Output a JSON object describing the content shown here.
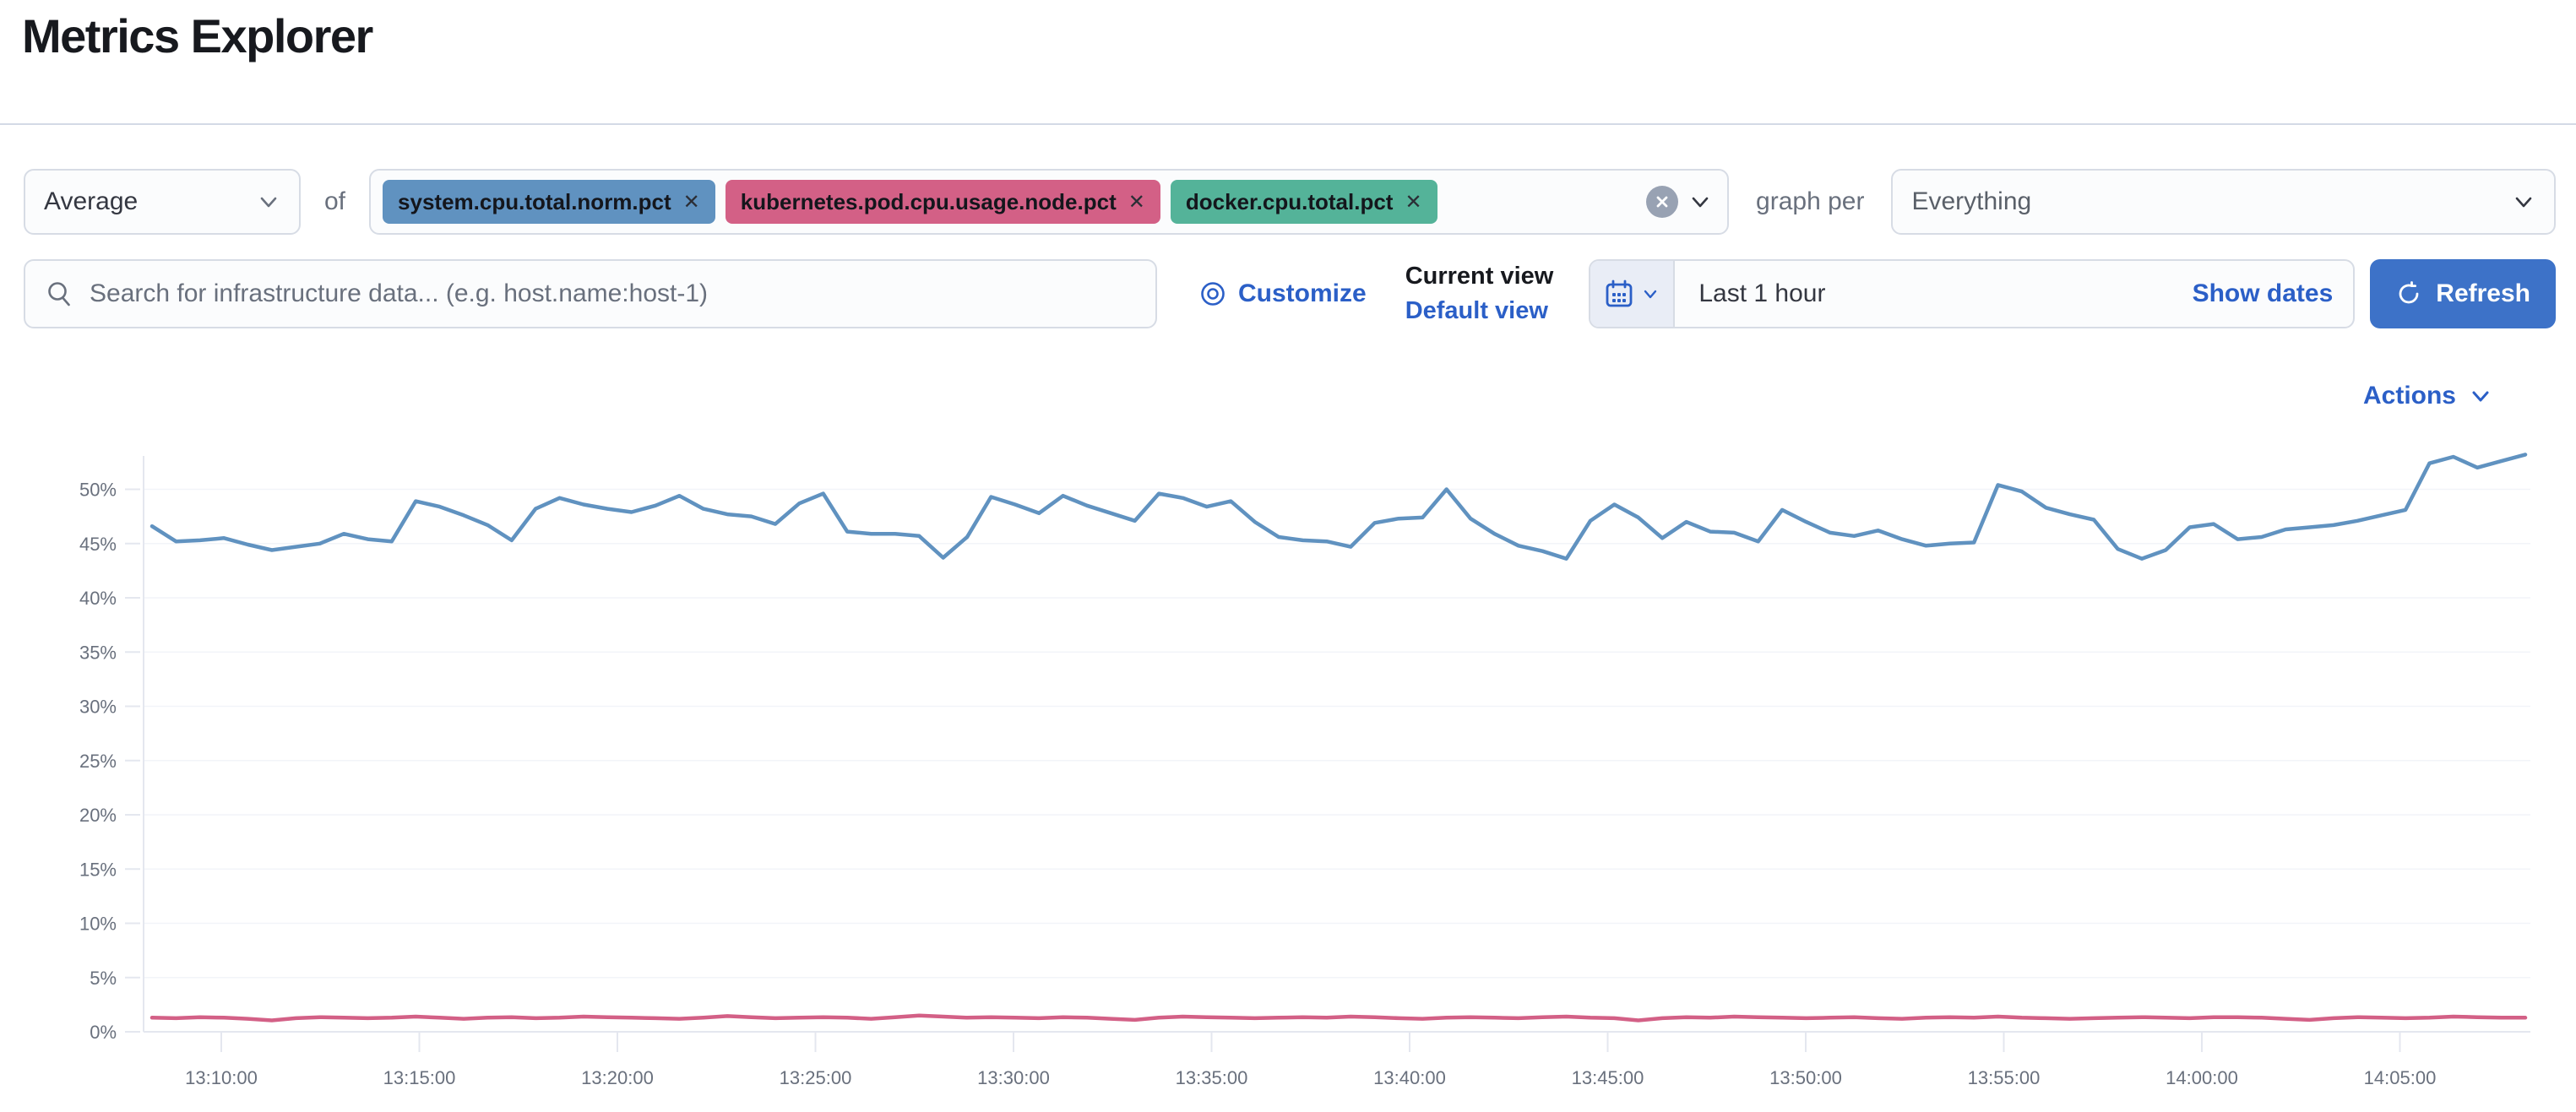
{
  "page": {
    "title": "Metrics Explorer"
  },
  "aggregation": {
    "selected": "Average",
    "of_label": "of"
  },
  "metrics": {
    "remove_glyph": "✕",
    "tags": [
      {
        "label": "system.cpu.total.norm.pct",
        "color": "#6092C0"
      },
      {
        "label": "kubernetes.pod.cpu.usage.node.pct",
        "color": "#D36086"
      },
      {
        "label": "docker.cpu.total.pct",
        "color": "#54B399"
      }
    ]
  },
  "graph_per": {
    "label": "graph per",
    "selected": "Everything"
  },
  "search": {
    "placeholder": "Search for infrastructure data... (e.g. host.name:host-1)"
  },
  "toolbar": {
    "customize_label": "Customize",
    "current_view_label": "Current view",
    "default_view_label": "Default view"
  },
  "datepicker": {
    "value": "Last 1 hour",
    "show_dates_label": "Show dates"
  },
  "refresh": {
    "label": "Refresh"
  },
  "actions": {
    "label": "Actions"
  },
  "colors": {
    "link_blue": "#2B5FC7",
    "button_blue": "#3D72C8",
    "axis_text": "#69707D",
    "grid_line": "#F2F4F9",
    "axis_line": "#E4E7EF",
    "series_blue": "#6092C0",
    "series_pink": "#D36086"
  },
  "chart_data": {
    "type": "line",
    "title": "",
    "xlabel": "",
    "ylabel": "",
    "ylim": [
      0,
      54
    ],
    "y_tick_step": 5,
    "y_tick_labels": [
      "0%",
      "5%",
      "10%",
      "15%",
      "20%",
      "25%",
      "30%",
      "35%",
      "40%",
      "45%",
      "50%"
    ],
    "x_tick_labels": [
      "13:10:00",
      "13:15:00",
      "13:20:00",
      "13:25:00",
      "13:30:00",
      "13:35:00",
      "13:40:00",
      "13:45:00",
      "13:50:00",
      "13:55:00",
      "14:00:00",
      "14:05:00"
    ],
    "grid": true,
    "legend": "none",
    "series": [
      {
        "name": "system.cpu.total.norm.pct",
        "color": "#6092C0",
        "values": [
          46.6,
          45.2,
          45.3,
          45.5,
          44.9,
          44.4,
          44.7,
          45.0,
          45.9,
          45.4,
          45.2,
          48.9,
          48.4,
          47.6,
          46.7,
          45.3,
          48.2,
          49.2,
          48.6,
          48.2,
          47.9,
          48.5,
          49.4,
          48.2,
          47.7,
          47.5,
          46.8,
          48.7,
          49.6,
          46.1,
          45.9,
          45.9,
          45.7,
          43.7,
          45.6,
          49.3,
          48.6,
          47.8,
          49.4,
          48.5,
          47.8,
          47.1,
          49.6,
          49.2,
          48.4,
          48.9,
          47.0,
          45.6,
          45.3,
          45.2,
          44.7,
          46.9,
          47.3,
          47.4,
          50.0,
          47.3,
          45.9,
          44.8,
          44.3,
          43.6,
          47.1,
          48.6,
          47.4,
          45.5,
          47.0,
          46.1,
          46.0,
          45.2,
          48.1,
          47.0,
          46.0,
          45.7,
          46.2,
          45.4,
          44.8,
          45.0,
          45.1,
          50.4,
          49.8,
          48.3,
          47.7,
          47.2,
          44.5,
          43.6,
          44.4,
          46.5,
          46.8,
          45.4,
          45.6,
          46.3,
          46.5,
          46.7,
          47.1,
          47.6,
          48.1,
          52.4,
          53.0,
          52.0,
          52.6,
          53.2
        ]
      },
      {
        "name": "kubernetes.pod.cpu.usage.node.pct",
        "color": "#D36086",
        "values": [
          1.3,
          1.25,
          1.35,
          1.3,
          1.2,
          1.05,
          1.25,
          1.35,
          1.3,
          1.25,
          1.3,
          1.4,
          1.3,
          1.2,
          1.3,
          1.35,
          1.25,
          1.3,
          1.4,
          1.35,
          1.3,
          1.25,
          1.2,
          1.3,
          1.45,
          1.35,
          1.25,
          1.3,
          1.35,
          1.3,
          1.2,
          1.35,
          1.5,
          1.4,
          1.3,
          1.35,
          1.3,
          1.25,
          1.35,
          1.3,
          1.2,
          1.1,
          1.3,
          1.4,
          1.35,
          1.3,
          1.25,
          1.3,
          1.35,
          1.3,
          1.4,
          1.35,
          1.25,
          1.2,
          1.3,
          1.35,
          1.3,
          1.25,
          1.35,
          1.4,
          1.3,
          1.25,
          1.05,
          1.25,
          1.35,
          1.3,
          1.4,
          1.35,
          1.3,
          1.25,
          1.3,
          1.35,
          1.25,
          1.2,
          1.3,
          1.35,
          1.3,
          1.4,
          1.3,
          1.25,
          1.2,
          1.25,
          1.3,
          1.35,
          1.3,
          1.25,
          1.35,
          1.35,
          1.3,
          1.2,
          1.1,
          1.25,
          1.35,
          1.3,
          1.25,
          1.3,
          1.4,
          1.35,
          1.3,
          1.3
        ]
      }
    ]
  }
}
